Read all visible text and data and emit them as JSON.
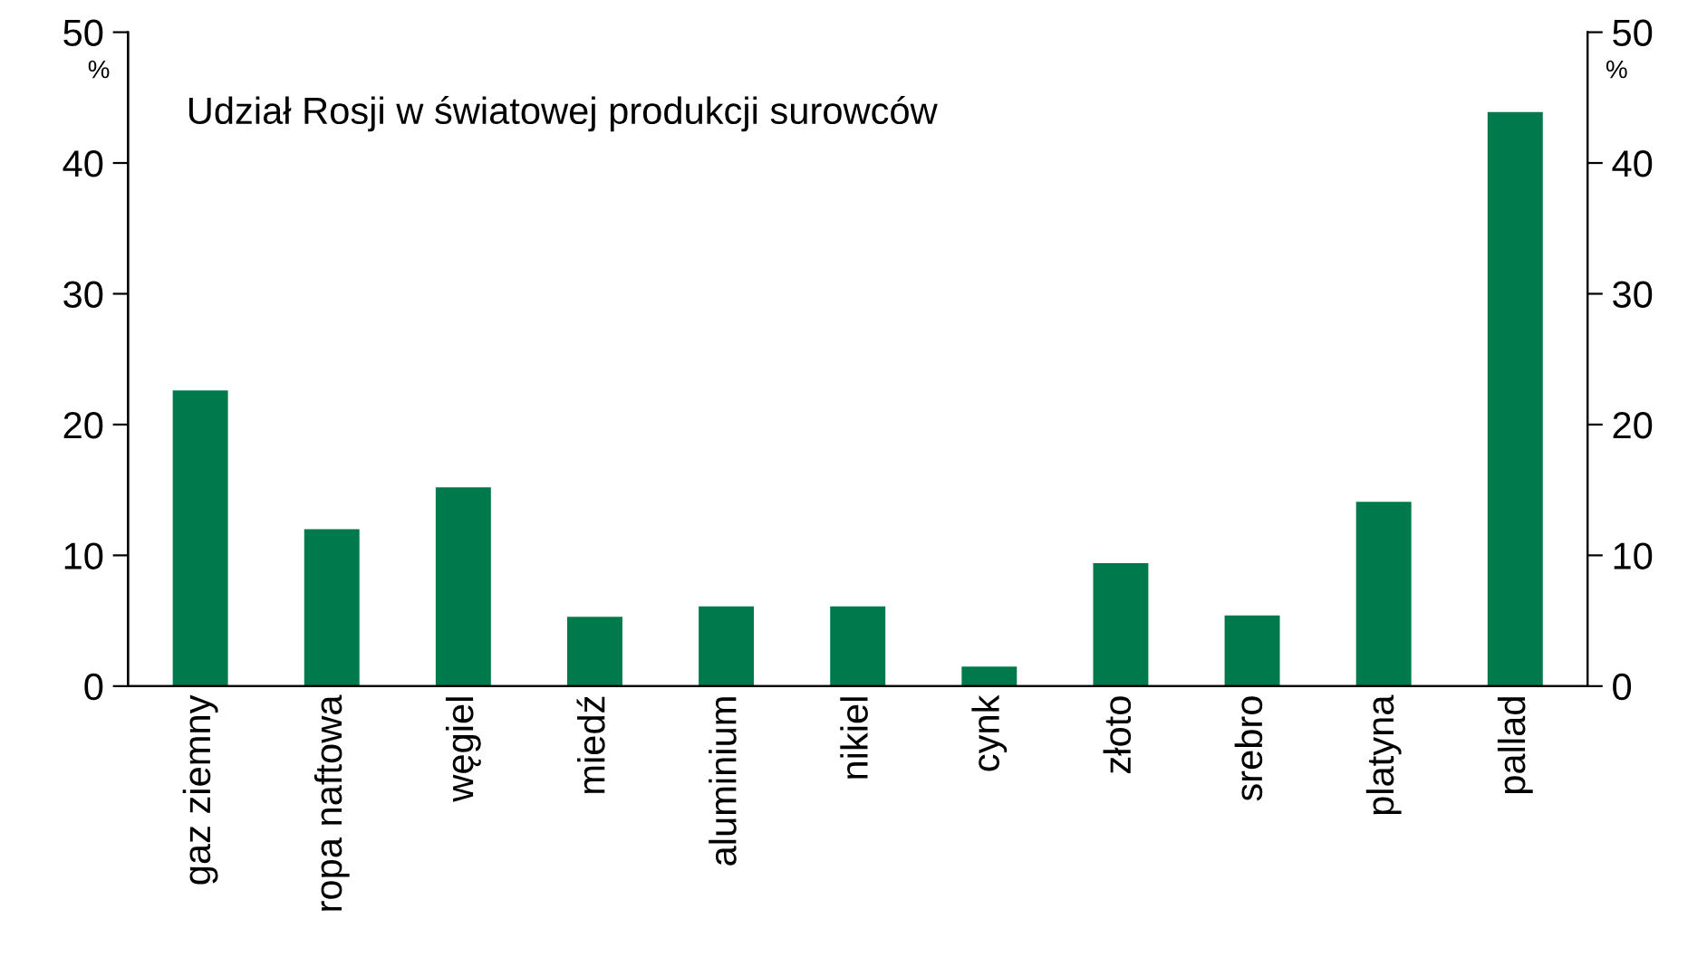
{
  "chart_data": {
    "type": "bar",
    "title": "Udział Rosji w światowej produkcji surowców",
    "categories": [
      "gaz ziemny",
      "ropa naftowa",
      "węgiel",
      "miedź",
      "aluminium",
      "nikiel",
      "cynk",
      "złoto",
      "srebro",
      "platyna",
      "pallad"
    ],
    "values": [
      22.6,
      12.0,
      15.2,
      5.3,
      6.1,
      6.1,
      1.5,
      9.4,
      5.4,
      14.1,
      43.9
    ],
    "color": "#007a4d",
    "ylabel": "%",
    "y2label": "%",
    "ylim": [
      0,
      50
    ],
    "yticks": [
      0,
      10,
      20,
      30,
      40,
      50
    ],
    "y2lim": [
      0,
      50
    ],
    "y2ticks": [
      0,
      10,
      20,
      30,
      40,
      50
    ],
    "grid": false,
    "legend": false
  }
}
